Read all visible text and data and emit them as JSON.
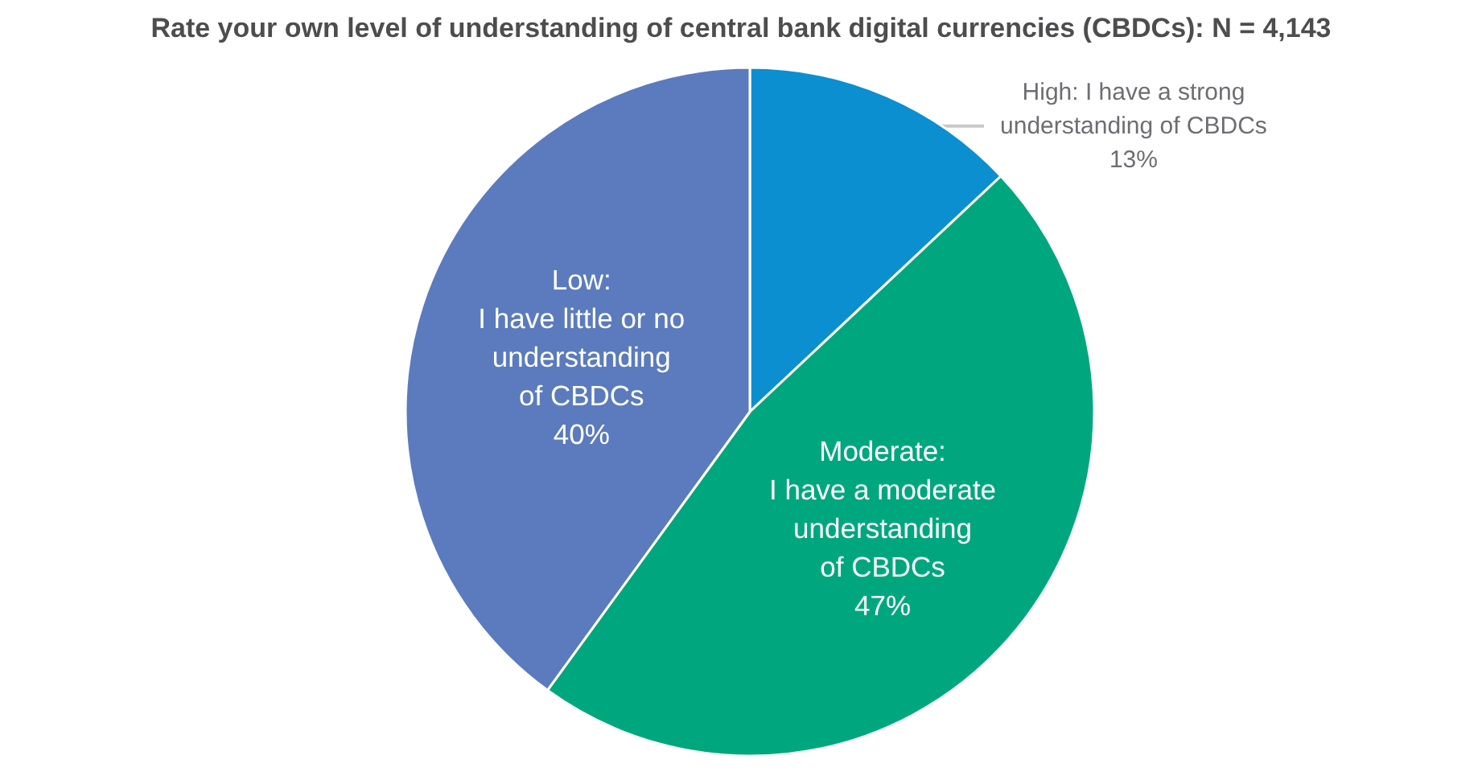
{
  "chart_data": {
    "type": "pie",
    "title": "Rate your own level of understanding of central bank digital currencies (CBDCs): N = 4,143",
    "categories": [
      "High: I have a strong\nunderstanding of CBDCs",
      "Moderate:\nI have a moderate\nunderstanding\nof CBDCs",
      "Low:\nI have little or no\nunderstanding\nof CBDCs"
    ],
    "values": [
      13,
      47,
      40
    ],
    "colors": [
      "#0b8fd0",
      "#00a77e",
      "#5b7bbe"
    ],
    "value_labels": [
      "13%",
      "47%",
      "40%"
    ]
  }
}
